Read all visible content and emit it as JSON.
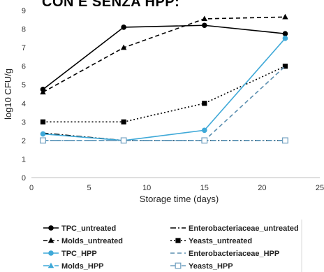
{
  "title": "CON E SENZA HPP:",
  "chart_data": {
    "type": "line",
    "title": "CON E SENZA HPP:",
    "xlabel": "Storage time (days)",
    "ylabel": "log10 CFU/g",
    "xlim": [
      0,
      25
    ],
    "ylim": [
      0,
      9
    ],
    "xticks": [
      0,
      5,
      10,
      15,
      20,
      25
    ],
    "yticks": [
      0,
      1,
      2,
      3,
      4,
      5,
      6,
      7,
      8,
      9
    ],
    "grid": false,
    "legend_position": "bottom",
    "series": [
      {
        "name": "TPC_untreated",
        "color": "#000000",
        "style": "solid",
        "marker": "circle",
        "points": [
          [
            1,
            4.75
          ],
          [
            8,
            8.1
          ],
          [
            15,
            8.2
          ],
          [
            22,
            7.75
          ]
        ]
      },
      {
        "name": "Enterobacteriaceae_untreated",
        "color": "#000000",
        "style": "dashdot",
        "marker": "none",
        "points": [
          [
            1,
            2.4
          ],
          [
            8,
            2.0
          ],
          [
            15,
            2.0
          ],
          [
            22,
            2.0
          ]
        ]
      },
      {
        "name": "Molds_untreated",
        "color": "#000000",
        "style": "dashed",
        "marker": "triangle",
        "points": [
          [
            1,
            4.6
          ],
          [
            8,
            7.0
          ],
          [
            15,
            8.55
          ],
          [
            22,
            8.65
          ]
        ]
      },
      {
        "name": "Yeasts_untreated",
        "color": "#000000",
        "style": "dotted",
        "marker": "square",
        "points": [
          [
            1,
            3.0
          ],
          [
            8,
            3.0
          ],
          [
            15,
            4.0
          ],
          [
            22,
            6.0
          ]
        ]
      },
      {
        "name": "TPC_HPP",
        "color": "#3fa9d8",
        "style": "solid",
        "marker": "circle",
        "points": [
          [
            1,
            2.35
          ],
          [
            8,
            2.0
          ],
          [
            15,
            2.55
          ],
          [
            22,
            7.5
          ]
        ]
      },
      {
        "name": "Enterobacteriaceae_HPP",
        "color": "#5b8fb0",
        "style": "dashed",
        "marker": "none",
        "points": [
          [
            1,
            2.0
          ],
          [
            8,
            2.0
          ],
          [
            15,
            2.0
          ],
          [
            22,
            6.0
          ]
        ]
      },
      {
        "name": "Molds_HPP",
        "color": "#3fa9d8",
        "style": "dashdot",
        "marker": "triangle",
        "points": [
          [
            1,
            2.0
          ],
          [
            8,
            2.0
          ],
          [
            15,
            2.0
          ],
          [
            22,
            2.0
          ]
        ]
      },
      {
        "name": "Yeasts_HPP",
        "color": "#6f9fbf",
        "style": "dashdot",
        "marker": "square-open",
        "points": [
          [
            1,
            2.0
          ],
          [
            8,
            2.0
          ],
          [
            15,
            2.0
          ],
          [
            22,
            2.0
          ]
        ]
      }
    ]
  }
}
